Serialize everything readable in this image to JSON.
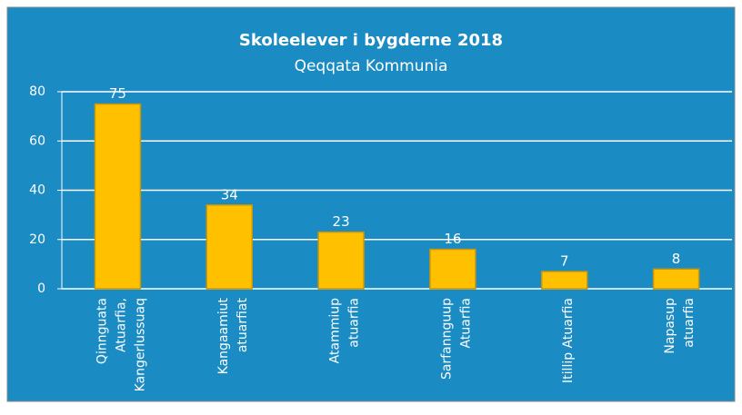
{
  "chart_data": {
    "type": "bar",
    "title": "Skoleelever i bygderne 2018",
    "subtitle": "Qeqqata Kommunia",
    "categories": [
      "Qinnguata\nAtuarfia,\nKangerlussuaq",
      "Kangaamiut\natuarfiat",
      "Atammiup\natuarfia",
      "Sarfannguup\nAtuarfia",
      "Itillip Atuarfia",
      "Napasup\natuarfia"
    ],
    "values": [
      75,
      34,
      23,
      16,
      7,
      8
    ],
    "color": "#ffc000",
    "background": "#1b8bc3",
    "ylim": [
      0,
      80
    ],
    "yticks": [
      0,
      20,
      40,
      60,
      80
    ],
    "grid": true
  }
}
